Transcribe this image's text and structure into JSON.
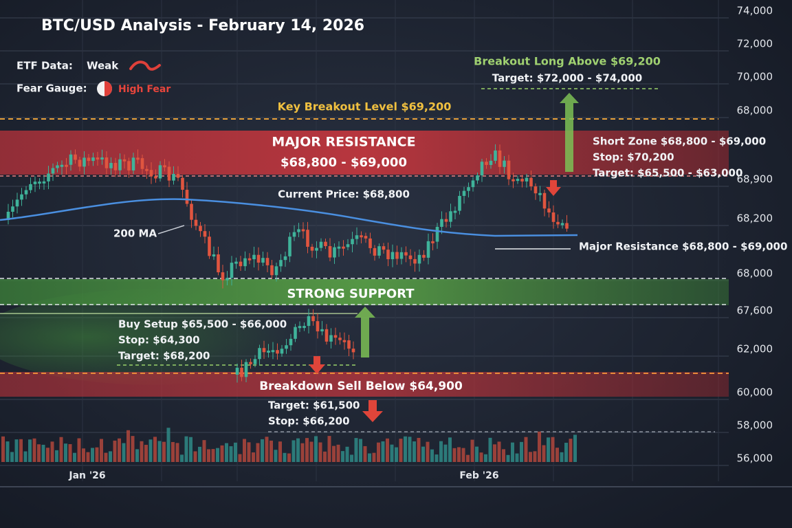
{
  "title": "BTC/USD Analysis - February 14, 2026",
  "indicators": {
    "etf_label": "ETF Data:",
    "etf_value": "Weak",
    "fear_label": "Fear Gauge:",
    "fear_value": "High Fear"
  },
  "annotations": {
    "breakout_long": "Breakout Long Above $69,200",
    "breakout_target": "Target: $72,000 - $74,000",
    "key_level": "Key Breakout Level $69,200",
    "resistance_title": "MAJOR RESISTANCE",
    "resistance_range": "$68,800 - $69,000",
    "short_zone": "Short Zone $68,800 - $69,000",
    "short_stop": "Stop: $70,200",
    "short_target": "Target: $65,500 - $63,000",
    "current_price": "Current Price: $68,800",
    "ma": "200 MA",
    "major_resistance": "Major Resistance $68,800 - $69,000",
    "support": "STRONG SUPPORT",
    "buy_setup": "Buy Setup $65,500 - $66,000",
    "buy_stop": "Stop: $64,300",
    "buy_target": "Target: $68,200",
    "breakdown": "Breakdown Sell Below $64,900",
    "breakdown_target": "Target: $61,500",
    "breakdown_stop": "Stop: $66,200"
  },
  "axis_labels": [
    "74,000",
    "72,000",
    "70,000",
    "68,000",
    "68,900",
    "68,200",
    "68,000",
    "67,600",
    "62,000",
    "60,000",
    "58,000",
    "56,000"
  ],
  "x_labels": [
    "Jan '26",
    "Feb '26"
  ]
}
